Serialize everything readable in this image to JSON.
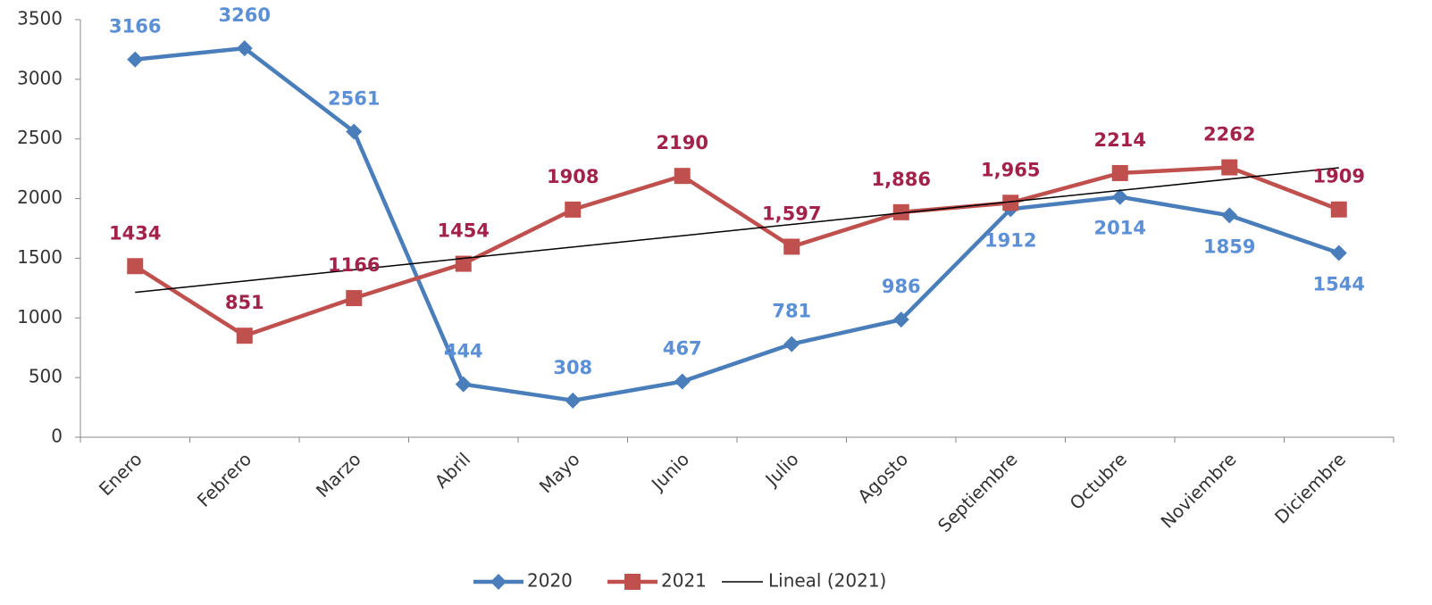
{
  "chart_data": {
    "type": "line",
    "categories": [
      "Enero",
      "Febrero",
      "Marzo",
      "Abril",
      "Mayo",
      "Junio",
      "Julio",
      "Agosto",
      "Septiembre",
      "Octubre",
      "Noviembre",
      "Diciembre"
    ],
    "series": [
      {
        "name": "2020",
        "color": "#4a7ebb",
        "label_color": "#5b8fd6",
        "marker": "diamond",
        "values": [
          3166,
          3260,
          2561,
          444,
          308,
          467,
          781,
          986,
          1912,
          2014,
          1859,
          1544
        ]
      },
      {
        "name": "2021",
        "color": "#c0504d",
        "label_color": "#a3224a",
        "marker": "square",
        "values": [
          1434,
          851,
          1166,
          1454,
          1908,
          2190,
          1597,
          1886,
          1965,
          2214,
          2262,
          1909
        ],
        "value_labels": [
          "1434",
          "851",
          "1166",
          "1454",
          "1908",
          "2190",
          "1,597",
          "1,886",
          "1,965",
          "2214",
          "2262",
          "1909"
        ],
        "trendline": {
          "name": "Lineal (2021)",
          "color": "#000000"
        }
      }
    ],
    "ylim": [
      0,
      3500
    ],
    "yticks": [
      0,
      500,
      1000,
      1500,
      2000,
      2500,
      3000,
      3500
    ],
    "legend": "bottom"
  }
}
